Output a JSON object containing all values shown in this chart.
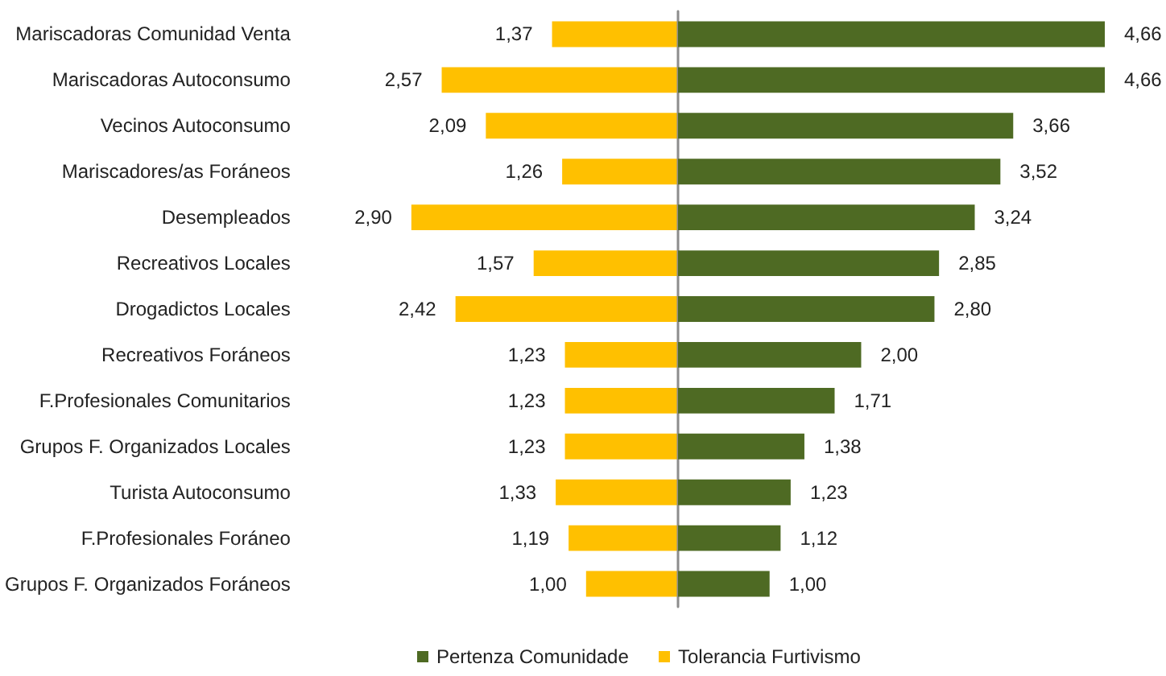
{
  "chart_data": [
    {
      "type": "bar",
      "orientation": "horizontal",
      "categories": [
        "Mariscadoras Comunidad Venta",
        "Mariscadoras Autoconsumo",
        "Vecinos Autoconsumo",
        "Mariscadores/as Foráneos",
        "Desempleados",
        "Recreativos Locales",
        "Drogadictos Locales",
        "Recreativos Foráneos",
        "F.Profesionales Comunitarios",
        "Grupos F. Organizados Locales",
        "Turista Autoconsumo",
        "F.Profesionales Foráneo",
        "Grupos F. Organizados Foráneos"
      ],
      "series": [
        {
          "name": "Tolerancia Furtivismo",
          "color": "#ffc000",
          "values": [
            1.37,
            2.57,
            2.09,
            1.26,
            2.9,
            1.57,
            2.42,
            1.23,
            1.23,
            1.23,
            1.33,
            1.19,
            1.0
          ],
          "value_labels": [
            "1,37",
            "2,57",
            "2,09",
            "1,26",
            "2,90",
            "1,57",
            "2,42",
            "1,23",
            "1,23",
            "1,23",
            "1,33",
            "1,19",
            "1,00"
          ]
        }
      ],
      "xlim": [
        2.9,
        0
      ],
      "tick_labels": "y",
      "legend": "bottom"
    },
    {
      "type": "bar",
      "orientation": "horizontal",
      "categories": [
        null,
        null,
        null,
        null,
        null,
        null,
        null,
        null,
        null,
        null,
        null,
        null,
        null
      ],
      "series": [
        {
          "name": "Pertenza Comunidade",
          "color": "#4e6a23",
          "values": [
            4.66,
            4.66,
            3.66,
            3.52,
            3.24,
            2.85,
            2.8,
            2.0,
            1.71,
            1.38,
            1.23,
            1.12,
            1.0
          ],
          "value_labels": [
            "4,66",
            "4,66",
            "3,66",
            "3,52",
            "3,24",
            "2,85",
            "2,80",
            "2,00",
            "1,71",
            "1,38",
            "1,23",
            "1,12",
            "1,00"
          ]
        }
      ],
      "xlim": [
        0,
        4.66
      ],
      "tick_labels": false,
      "legend": "bottom"
    }
  ]
}
